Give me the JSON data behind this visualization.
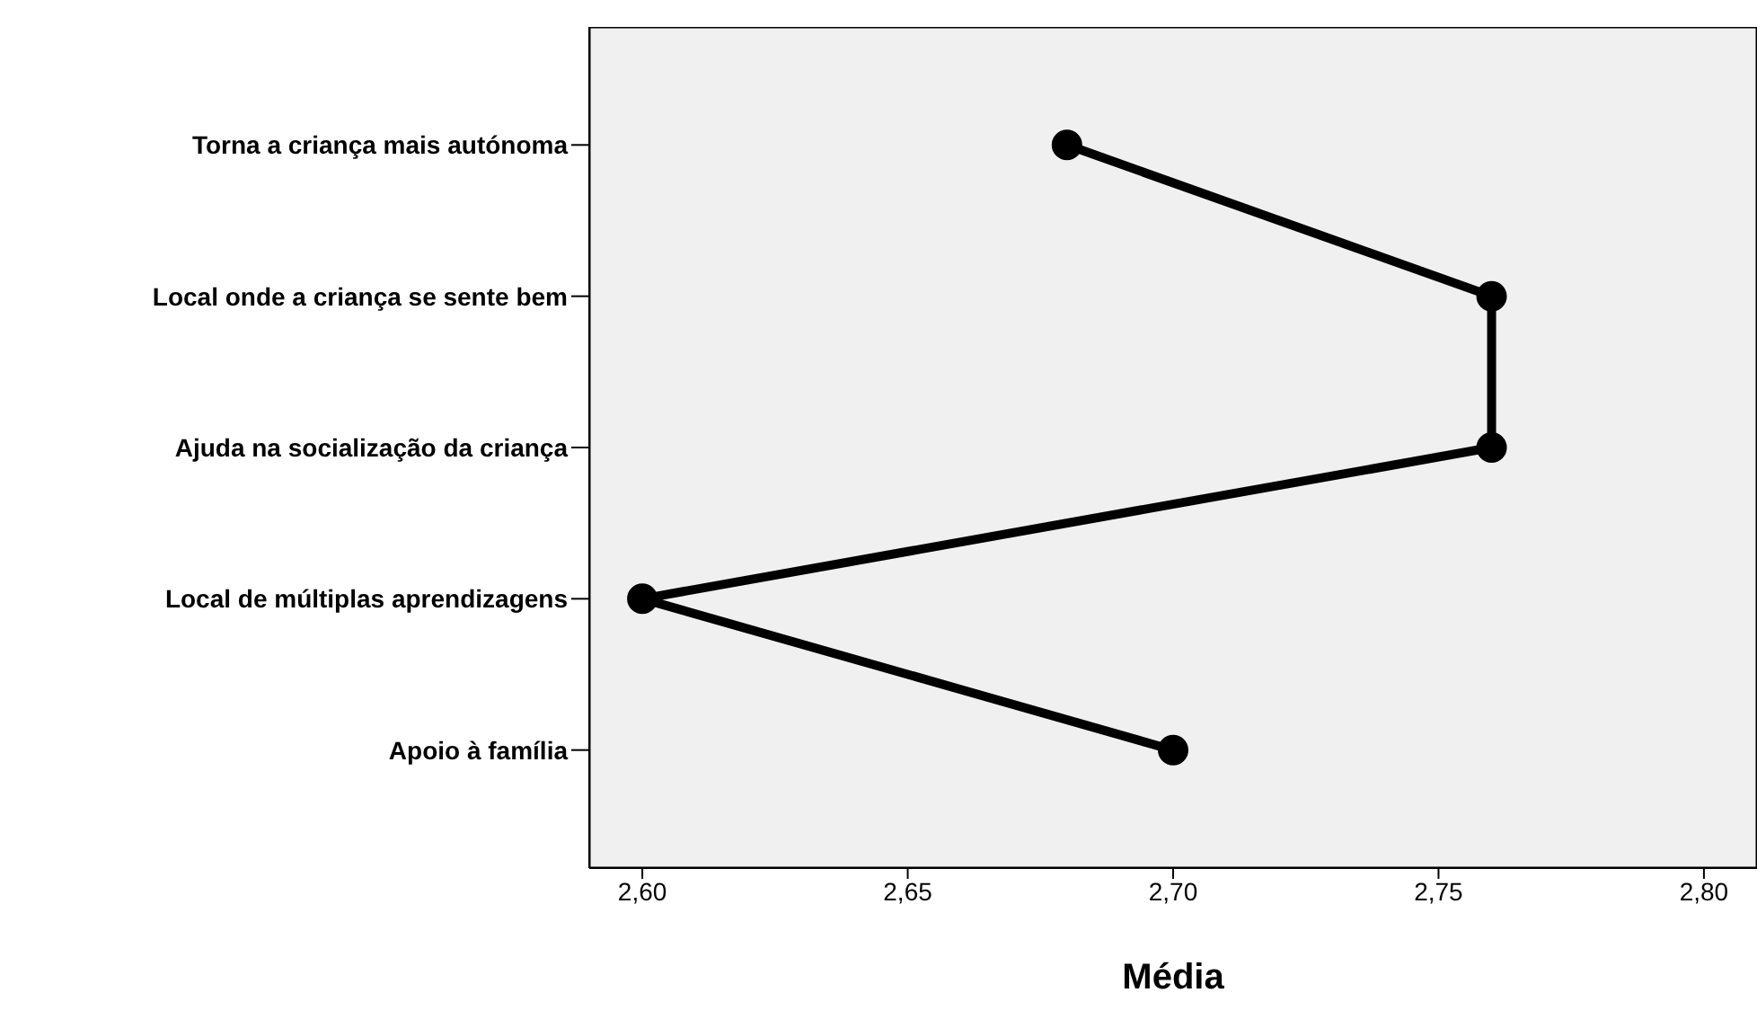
{
  "chart_data": {
    "type": "line",
    "xlabel": "Média",
    "categories": [
      "Torna a criança mais autónoma",
      "Local onde a criança se sente bem",
      "Ajuda na socialização da criança",
      "Local de múltiplas aprendizagens",
      "Apoio à família"
    ],
    "series": [
      {
        "color": "#000000",
        "values": [
          2.68,
          2.76,
          2.76,
          2.6,
          2.7
        ]
      }
    ],
    "orientation": "horizontal",
    "xlim": [
      2.59,
      2.81
    ],
    "xticks": [
      {
        "value": 2.6,
        "label": "2,60"
      },
      {
        "value": 2.65,
        "label": "2,65"
      },
      {
        "value": 2.7,
        "label": "2,70"
      },
      {
        "value": 2.75,
        "label": "2,75"
      },
      {
        "value": 2.8,
        "label": "2,80"
      }
    ],
    "marker": "circle",
    "line_style": "solid",
    "legend": false
  }
}
